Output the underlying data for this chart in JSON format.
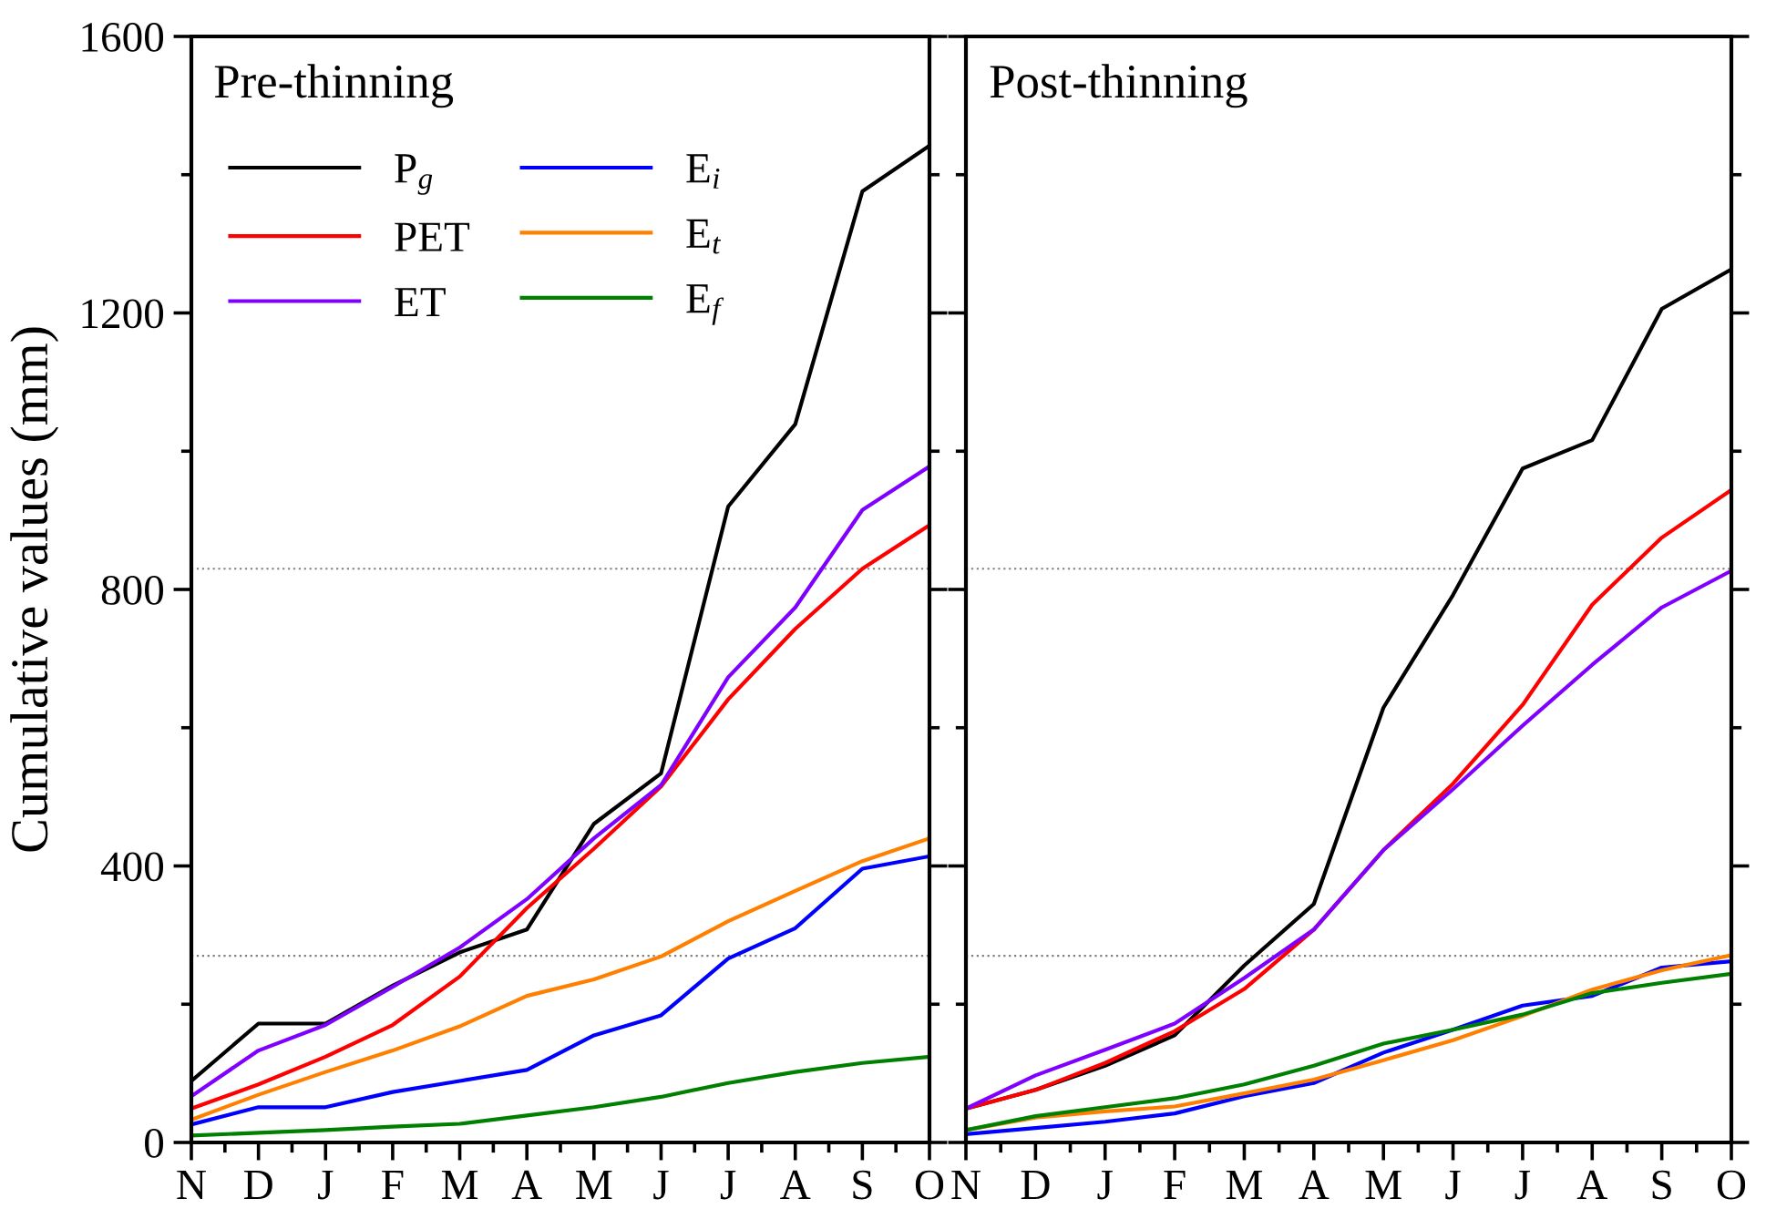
{
  "chart_data": [
    {
      "type": "line",
      "title": "Pre-thinning",
      "ylabel": "Cumulative values (mm)",
      "categories": [
        "N",
        "D",
        "J",
        "F",
        "M",
        "A",
        "M",
        "J",
        "J",
        "A",
        "S",
        "O"
      ],
      "ylim": [
        0,
        1600
      ],
      "yticks": [
        0,
        400,
        800,
        1200,
        1600
      ],
      "grid": false,
      "legend": "top left",
      "marker": "none",
      "line_style": "solid",
      "ref_lines": [
        {
          "axis": "y",
          "value": 830,
          "color": "#808080",
          "line_style": "dotted"
        },
        {
          "axis": "y",
          "value": 270,
          "color": "#808080",
          "line_style": "dotted"
        }
      ],
      "series": [
        {
          "name": "P$_{g}$",
          "color": "#000000",
          "values": [
            89,
            172,
            172,
            227,
            275,
            308,
            461,
            534,
            920,
            1039,
            1376,
            1442
          ]
        },
        {
          "name": "PET",
          "color": "#ff0000",
          "values": [
            49,
            84,
            124,
            170,
            240,
            339,
            425,
            515,
            641,
            743,
            830,
            893
          ]
        },
        {
          "name": "ET",
          "color": "#8000ff",
          "values": [
            67,
            133,
            170,
            225,
            282,
            352,
            440,
            517,
            673,
            774,
            915,
            978
          ]
        },
        {
          "name": "E$_{i}$",
          "color": "#0000ff",
          "values": [
            26,
            51,
            51,
            73,
            89,
            105,
            155,
            184,
            266,
            310,
            396,
            414
          ]
        },
        {
          "name": "E$_{t}$",
          "color": "#ff8000",
          "values": [
            33,
            69,
            102,
            133,
            168,
            212,
            236,
            269,
            320,
            364,
            407,
            440
          ]
        },
        {
          "name": "E$_{f}$",
          "color": "#008000",
          "values": [
            10,
            14,
            18,
            23,
            27,
            39,
            51,
            66,
            86,
            102,
            115,
            124
          ]
        }
      ]
    },
    {
      "type": "line",
      "title": "Post-thinning",
      "categories": [
        "N",
        "D",
        "J",
        "F",
        "M",
        "A",
        "M",
        "J",
        "J",
        "A",
        "S",
        "O"
      ],
      "ylim": [
        0,
        1600
      ],
      "yticks": [
        0,
        400,
        800,
        1200,
        1600
      ],
      "tick_labels": "x",
      "grid": false,
      "marker": "none",
      "line_style": "solid",
      "ref_lines": [
        {
          "axis": "y",
          "value": 830,
          "color": "#808080",
          "line_style": "dotted"
        },
        {
          "axis": "y",
          "value": 270,
          "color": "#808080",
          "line_style": "dotted"
        }
      ],
      "series": [
        {
          "color": "#000000",
          "values": [
            49,
            76,
            111,
            155,
            256,
            345,
            629,
            792,
            975,
            1016,
            1206,
            1263
          ]
        },
        {
          "color": "#ff0000",
          "values": [
            49,
            76,
            115,
            161,
            222,
            308,
            423,
            519,
            633,
            778,
            875,
            944
          ]
        },
        {
          "color": "#8000ff",
          "values": [
            49,
            97,
            134,
            172,
            238,
            308,
            423,
            511,
            603,
            691,
            774,
            827
          ]
        },
        {
          "color": "#0000ff",
          "values": [
            12,
            21,
            30,
            42,
            67,
            86,
            130,
            163,
            198,
            212,
            253,
            262
          ]
        },
        {
          "color": "#ff8000",
          "values": [
            18,
            36,
            45,
            52,
            71,
            91,
            119,
            148,
            183,
            221,
            249,
            271
          ]
        },
        {
          "color": "#008000",
          "values": [
            18,
            38,
            51,
            64,
            84,
            111,
            143,
            163,
            185,
            216,
            231,
            244
          ]
        }
      ]
    }
  ]
}
